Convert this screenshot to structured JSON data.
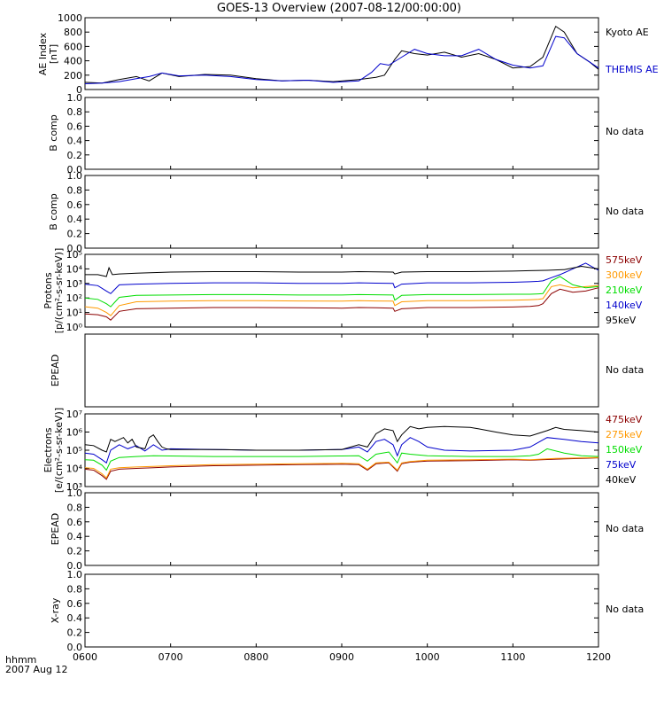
{
  "title": "GOES-13 Overview (2007-08-12/00:00:00)",
  "time_label_line1": "hhmm",
  "time_label_line2": "2007 Aug 12",
  "x_ticks": [
    "0600",
    "0700",
    "0800",
    "0900",
    "1000",
    "1100",
    "1200"
  ],
  "chart_data": [
    {
      "type": "line",
      "id": "ae",
      "ylabel": "AE Index [nT]",
      "ylim": [
        0,
        1000
      ],
      "yticks": [
        "0",
        "200",
        "400",
        "600",
        "800",
        "1000"
      ],
      "x_range": [
        0,
        6
      ],
      "series": [
        {
          "name": "Kyoto AE",
          "color": "#000000",
          "x": [
            0,
            0.2,
            0.4,
            0.6,
            0.75,
            0.9,
            1.1,
            1.4,
            1.7,
            2.0,
            2.3,
            2.6,
            2.9,
            3.2,
            3.4,
            3.5,
            3.62,
            3.7,
            3.85,
            4.0,
            4.2,
            4.4,
            4.6,
            4.8,
            5.0,
            5.1,
            5.2,
            5.35,
            5.5,
            5.6,
            5.75,
            5.9,
            6.0
          ],
          "y": [
            100,
            90,
            140,
            180,
            120,
            230,
            180,
            210,
            200,
            150,
            120,
            130,
            110,
            140,
            170,
            200,
            420,
            540,
            500,
            480,
            520,
            450,
            500,
            420,
            300,
            310,
            320,
            450,
            880,
            800,
            500,
            380,
            280
          ]
        },
        {
          "name": "THEMIS AE",
          "color": "#0000cc",
          "x": [
            0,
            0.2,
            0.4,
            0.6,
            0.75,
            0.9,
            1.1,
            1.4,
            1.7,
            2.0,
            2.3,
            2.6,
            2.9,
            3.2,
            3.35,
            3.45,
            3.55,
            3.7,
            3.85,
            4.0,
            4.2,
            4.4,
            4.6,
            4.8,
            5.0,
            5.1,
            5.2,
            5.35,
            5.5,
            5.6,
            5.75,
            5.9,
            6.0
          ],
          "y": [
            80,
            90,
            110,
            150,
            180,
            230,
            190,
            200,
            180,
            140,
            120,
            130,
            100,
            120,
            240,
            360,
            340,
            450,
            560,
            500,
            470,
            470,
            560,
            420,
            340,
            320,
            300,
            330,
            740,
            720,
            500,
            380,
            300
          ]
        }
      ],
      "legend_position": "right"
    },
    {
      "type": "line",
      "id": "b1",
      "ylabel": "B comp",
      "ylim": [
        0,
        1.0
      ],
      "yticks": [
        "0.0",
        "0.2",
        "0.4",
        "0.6",
        "0.8",
        "1.0"
      ],
      "series": [],
      "status": "No data"
    },
    {
      "type": "line",
      "id": "b2",
      "ylabel": "B comp",
      "ylim": [
        0,
        1.0
      ],
      "yticks": [
        "0.0",
        "0.2",
        "0.4",
        "0.6",
        "0.8",
        "1.0"
      ],
      "series": [],
      "status": "No data"
    },
    {
      "type": "line",
      "id": "protons",
      "ylabel_line1": "Protons",
      "ylabel_line2": "[p/(cm²-s-sr-keV)]",
      "yscale": "log",
      "ylim": [
        1,
        100000
      ],
      "yticks": [
        "10⁰",
        "10¹",
        "10²",
        "10³",
        "10⁴",
        "10⁵"
      ],
      "series": [
        {
          "name": "575keV",
          "color": "#8b0000",
          "x": [
            0,
            0.15,
            0.25,
            0.3,
            0.4,
            0.6,
            1.0,
            1.5,
            2.0,
            2.5,
            3.0,
            3.2,
            3.4,
            3.6,
            3.62,
            3.7,
            4.0,
            4.5,
            5.0,
            5.2,
            5.3,
            5.35,
            5.45,
            5.55,
            5.7,
            5.85,
            6.0
          ],
          "y": [
            8,
            7,
            5,
            3,
            12,
            18,
            20,
            22,
            22,
            21,
            20,
            22,
            21,
            20,
            12,
            18,
            22,
            22,
            24,
            26,
            30,
            40,
            200,
            400,
            250,
            300,
            500
          ]
        },
        {
          "name": "300keV",
          "color": "#ff9900",
          "x": [
            0,
            0.15,
            0.25,
            0.3,
            0.4,
            0.6,
            1.0,
            1.5,
            2.0,
            2.5,
            3.0,
            3.2,
            3.4,
            3.6,
            3.62,
            3.7,
            4.0,
            4.5,
            5.0,
            5.2,
            5.3,
            5.35,
            5.45,
            5.55,
            5.7,
            5.85,
            6.0
          ],
          "y": [
            25,
            20,
            10,
            6,
            30,
            55,
            60,
            65,
            65,
            62,
            60,
            65,
            62,
            60,
            30,
            55,
            65,
            65,
            70,
            75,
            80,
            90,
            600,
            800,
            500,
            600,
            700
          ]
        },
        {
          "name": "210keV",
          "color": "#00dd00",
          "x": [
            0,
            0.15,
            0.25,
            0.3,
            0.4,
            0.6,
            1.0,
            1.5,
            2.0,
            2.5,
            3.0,
            3.2,
            3.4,
            3.6,
            3.62,
            3.7,
            4.0,
            4.5,
            5.0,
            5.2,
            5.3,
            5.35,
            5.45,
            5.55,
            5.7,
            5.85,
            6.0
          ],
          "y": [
            100,
            80,
            40,
            25,
            110,
            150,
            160,
            170,
            170,
            160,
            160,
            170,
            165,
            160,
            70,
            150,
            170,
            170,
            180,
            180,
            190,
            200,
            1500,
            3000,
            800,
            500,
            600
          ]
        },
        {
          "name": "140keV",
          "color": "#0000cc",
          "x": [
            0,
            0.15,
            0.25,
            0.3,
            0.4,
            0.6,
            1.0,
            1.5,
            2.0,
            2.5,
            3.0,
            3.2,
            3.4,
            3.6,
            3.62,
            3.7,
            4.0,
            4.5,
            5.0,
            5.2,
            5.3,
            5.35,
            5.45,
            5.55,
            5.7,
            5.85,
            6.0
          ],
          "y": [
            900,
            700,
            300,
            200,
            800,
            900,
            1000,
            1100,
            1100,
            1000,
            1000,
            1100,
            1050,
            1000,
            500,
            900,
            1100,
            1100,
            1200,
            1300,
            1400,
            1500,
            2500,
            4000,
            10000,
            25000,
            8000
          ]
        },
        {
          "name": "95keV",
          "color": "#000000",
          "x": [
            0,
            0.15,
            0.25,
            0.28,
            0.32,
            0.4,
            0.6,
            1.0,
            1.5,
            2.0,
            2.5,
            3.0,
            3.2,
            3.4,
            3.6,
            3.62,
            3.7,
            4.0,
            4.5,
            5.0,
            5.2,
            5.4,
            5.6,
            5.8,
            6.0
          ],
          "y": [
            4000,
            4000,
            3000,
            12000,
            4000,
            4500,
            5000,
            6000,
            6500,
            6500,
            6000,
            6000,
            6500,
            6200,
            6000,
            4500,
            6000,
            6500,
            6500,
            7000,
            7500,
            8000,
            9000,
            15000,
            10000
          ]
        }
      ],
      "legend_position": "right"
    },
    {
      "type": "line",
      "id": "epead1",
      "ylabel": "EPEAD",
      "series": [],
      "status": "No data"
    },
    {
      "type": "line",
      "id": "electrons",
      "ylabel_line1": "Electrons",
      "ylabel_line2": "[e/(cm²-s-sr-keV)]",
      "yscale": "log",
      "ylim": [
        1000,
        10000000
      ],
      "yticks": [
        "10³",
        "10⁴",
        "10⁵",
        "10⁶",
        "10⁷"
      ],
      "series": [
        {
          "name": "475keV",
          "color": "#8b0000",
          "x": [
            0,
            0.1,
            0.2,
            0.25,
            0.3,
            0.4,
            0.6,
            0.8,
            1.0,
            1.5,
            2.0,
            2.5,
            3.0,
            3.2,
            3.3,
            3.4,
            3.55,
            3.65,
            3.7,
            3.8,
            4.0,
            4.5,
            5.0,
            5.2,
            5.5,
            5.8,
            6.0
          ],
          "y": [
            9000,
            8000,
            4000,
            2500,
            7000,
            9000,
            10000,
            11000,
            12000,
            14000,
            15000,
            16000,
            17000,
            16000,
            8000,
            18000,
            20000,
            7000,
            18000,
            22000,
            25000,
            27000,
            30000,
            28000,
            32000,
            35000,
            38000
          ]
        },
        {
          "name": "275keV",
          "color": "#ff9900",
          "x": [
            0,
            0.1,
            0.2,
            0.25,
            0.3,
            0.4,
            0.6,
            0.8,
            1.0,
            1.5,
            2.0,
            2.5,
            3.0,
            3.2,
            3.3,
            3.4,
            3.55,
            3.65,
            3.7,
            3.8,
            4.0,
            4.5,
            5.0,
            5.2,
            5.5,
            5.8,
            6.0
          ],
          "y": [
            11000,
            10000,
            5000,
            3000,
            9000,
            11000,
            12000,
            13000,
            14000,
            16000,
            17000,
            18000,
            19000,
            18000,
            9000,
            20000,
            22000,
            8000,
            20000,
            24000,
            28000,
            30000,
            32000,
            30000,
            35000,
            38000,
            40000
          ]
        },
        {
          "name": "150keV",
          "color": "#00dd00",
          "x": [
            0,
            0.1,
            0.2,
            0.25,
            0.3,
            0.4,
            0.6,
            0.8,
            1.0,
            1.5,
            2.0,
            2.5,
            3.0,
            3.2,
            3.3,
            3.4,
            3.55,
            3.65,
            3.7,
            3.8,
            4.0,
            4.5,
            5.0,
            5.2,
            5.3,
            5.4,
            5.6,
            5.8,
            6.0
          ],
          "y": [
            30000,
            28000,
            15000,
            8000,
            25000,
            40000,
            45000,
            50000,
            48000,
            45000,
            45000,
            45000,
            48000,
            50000,
            25000,
            60000,
            80000,
            20000,
            70000,
            60000,
            50000,
            45000,
            45000,
            50000,
            60000,
            120000,
            70000,
            50000,
            45000
          ]
        },
        {
          "name": "75keV",
          "color": "#0000cc",
          "x": [
            0,
            0.1,
            0.2,
            0.25,
            0.3,
            0.4,
            0.5,
            0.6,
            0.7,
            0.8,
            0.9,
            1.0,
            1.5,
            2.0,
            2.5,
            3.0,
            3.2,
            3.3,
            3.4,
            3.5,
            3.6,
            3.65,
            3.7,
            3.8,
            3.9,
            4.0,
            4.2,
            4.5,
            5.0,
            5.2,
            5.4,
            5.6,
            5.8,
            6.0
          ],
          "y": [
            70000,
            60000,
            30000,
            20000,
            100000,
            200000,
            120000,
            180000,
            90000,
            200000,
            100000,
            120000,
            110000,
            100000,
            100000,
            110000,
            150000,
            80000,
            300000,
            400000,
            200000,
            50000,
            200000,
            500000,
            300000,
            150000,
            100000,
            90000,
            100000,
            150000,
            500000,
            400000,
            300000,
            250000
          ]
        },
        {
          "name": "40keV",
          "color": "#000000",
          "x": [
            0,
            0.1,
            0.2,
            0.25,
            0.3,
            0.35,
            0.45,
            0.5,
            0.55,
            0.6,
            0.7,
            0.75,
            0.8,
            0.85,
            0.9,
            0.95,
            1.0,
            1.5,
            2.0,
            2.5,
            3.0,
            3.2,
            3.3,
            3.4,
            3.5,
            3.6,
            3.65,
            3.7,
            3.8,
            3.9,
            4.0,
            4.2,
            4.5,
            4.6,
            4.8,
            5.0,
            5.2,
            5.4,
            5.5,
            5.6,
            5.8,
            6.0
          ],
          "y": [
            200000,
            180000,
            100000,
            80000,
            400000,
            300000,
            500000,
            250000,
            400000,
            150000,
            120000,
            500000,
            700000,
            300000,
            150000,
            120000,
            110000,
            110000,
            100000,
            100000,
            110000,
            200000,
            150000,
            800000,
            1500000,
            1200000,
            300000,
            700000,
            2000000,
            1500000,
            1800000,
            2000000,
            1800000,
            1500000,
            1000000,
            700000,
            600000,
            1200000,
            1800000,
            1400000,
            1200000,
            1000000
          ]
        }
      ],
      "legend_position": "right"
    },
    {
      "type": "line",
      "id": "epead2",
      "ylabel": "EPEAD",
      "ylim": [
        0,
        1.0
      ],
      "yticks": [
        "0.0",
        "0.2",
        "0.4",
        "0.6",
        "0.8",
        "1.0"
      ],
      "series": [],
      "status": "No data"
    },
    {
      "type": "line",
      "id": "xray",
      "ylabel": "X-ray",
      "ylim": [
        0,
        1.0
      ],
      "yticks": [
        "0.0",
        "0.2",
        "0.4",
        "0.6",
        "0.8",
        "1.0"
      ],
      "series": [],
      "status": "No data"
    }
  ]
}
